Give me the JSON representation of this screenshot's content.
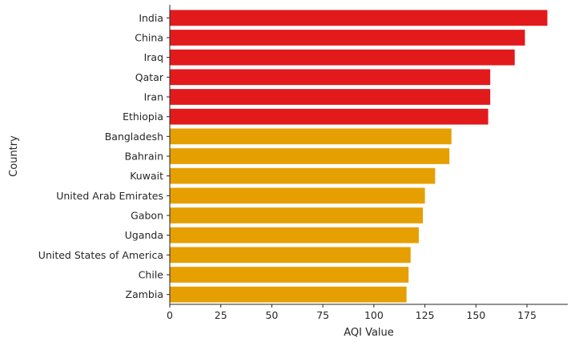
{
  "chart_data": {
    "type": "bar",
    "orientation": "horizontal",
    "xlabel": "AQI Value",
    "ylabel": "Country",
    "xlim": [
      0,
      195
    ],
    "xticks": [
      0,
      25,
      50,
      75,
      100,
      125,
      150,
      175
    ],
    "grid": false,
    "categories": [
      "India",
      "China",
      "Iraq",
      "Qatar",
      "Iran",
      "Ethiopia",
      "Bangladesh",
      "Bahrain",
      "Kuwait",
      "United Arab Emirates",
      "Gabon",
      "Uganda",
      "United States of America",
      "Chile",
      "Zambia"
    ],
    "values": [
      185,
      174,
      169,
      157,
      157,
      156,
      138,
      137,
      130,
      125,
      124,
      122,
      118,
      117,
      116
    ],
    "bar_colors": [
      "#e31a1c",
      "#e31a1c",
      "#e31a1c",
      "#e31a1c",
      "#e31a1c",
      "#e31a1c",
      "#e69f00",
      "#e69f00",
      "#e69f00",
      "#e69f00",
      "#e69f00",
      "#e69f00",
      "#e69f00",
      "#e69f00",
      "#e69f00"
    ]
  }
}
